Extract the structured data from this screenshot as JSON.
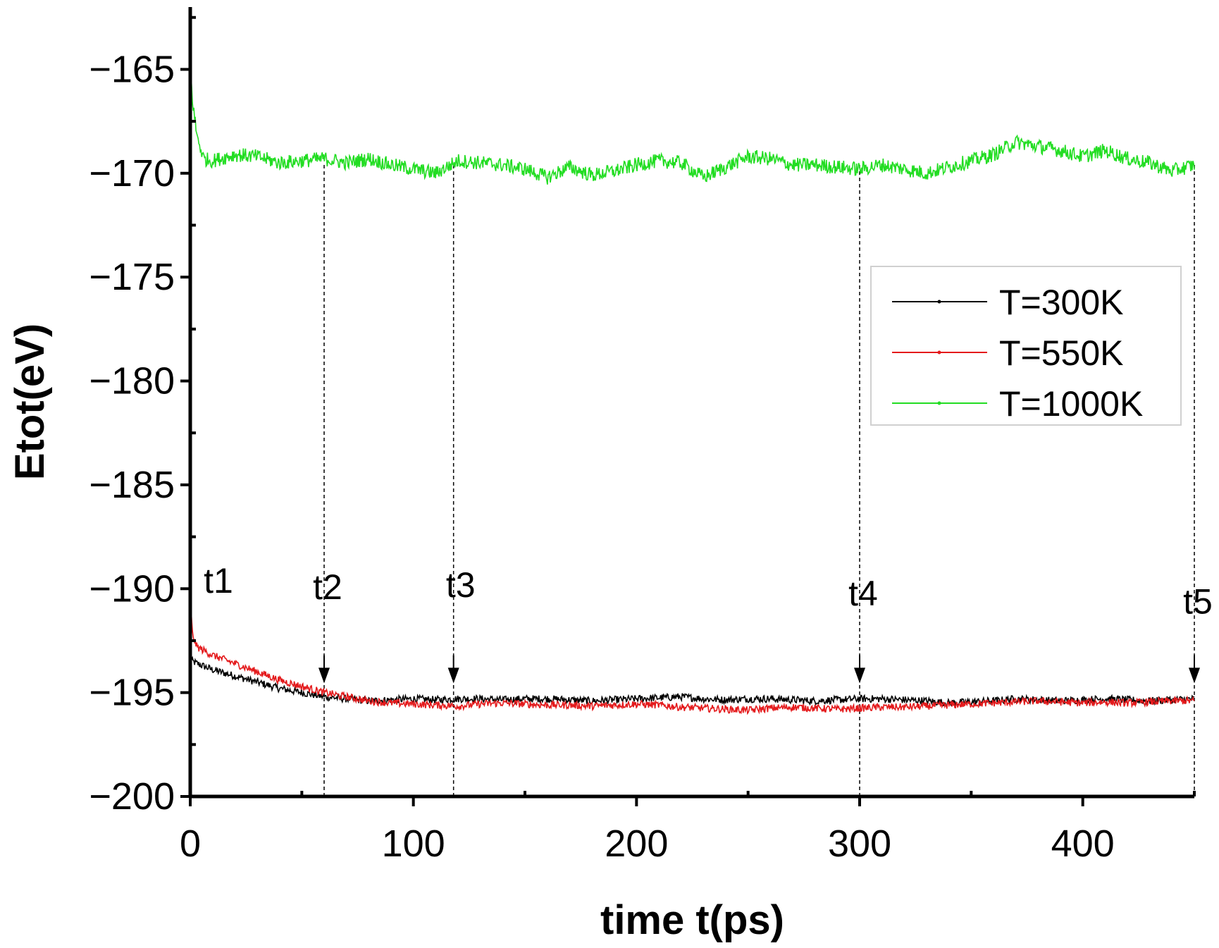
{
  "chart_data": {
    "type": "line",
    "title": "",
    "xlabel": "time t(ps)",
    "ylabel": "Etot(eV)",
    "xlim": [
      0,
      450
    ],
    "ylim": [
      -200,
      -162
    ],
    "xticks": [
      0,
      100,
      200,
      300,
      400
    ],
    "xtick_labels": [
      "0",
      "100",
      "200",
      "300",
      "400"
    ],
    "yticks": [
      -200,
      -195,
      -190,
      -185,
      -180,
      -175,
      -170,
      -165
    ],
    "ytick_labels": [
      "−200",
      "−195",
      "−190",
      "−185",
      "−180",
      "−175",
      "−170",
      "−165"
    ],
    "legend_position": "right",
    "series": [
      {
        "name": "T=300K",
        "color": "#000000",
        "x": [
          0,
          1,
          3,
          10,
          20,
          30,
          40,
          50,
          60,
          70,
          80,
          90,
          100,
          110,
          120,
          130,
          140,
          150,
          160,
          170,
          180,
          190,
          200,
          210,
          220,
          230,
          240,
          250,
          260,
          270,
          280,
          290,
          300,
          310,
          320,
          330,
          340,
          350,
          360,
          370,
          380,
          390,
          400,
          410,
          420,
          430,
          440,
          450
        ],
        "y": [
          -193.4,
          -193.5,
          -193.6,
          -193.9,
          -194.2,
          -194.5,
          -194.8,
          -195.0,
          -195.2,
          -195.3,
          -195.4,
          -195.35,
          -195.3,
          -195.35,
          -195.3,
          -195.3,
          -195.35,
          -195.3,
          -195.3,
          -195.35,
          -195.4,
          -195.35,
          -195.3,
          -195.25,
          -195.2,
          -195.3,
          -195.35,
          -195.3,
          -195.3,
          -195.35,
          -195.4,
          -195.35,
          -195.3,
          -195.3,
          -195.35,
          -195.4,
          -195.5,
          -195.45,
          -195.4,
          -195.3,
          -195.35,
          -195.4,
          -195.35,
          -195.3,
          -195.35,
          -195.4,
          -195.35,
          -195.3
        ]
      },
      {
        "name": "T=550K",
        "color": "#e41a1c",
        "x": [
          0,
          1,
          3,
          10,
          20,
          30,
          40,
          50,
          60,
          70,
          80,
          90,
          100,
          110,
          120,
          130,
          140,
          150,
          160,
          170,
          180,
          190,
          200,
          210,
          220,
          230,
          240,
          250,
          260,
          270,
          280,
          290,
          300,
          310,
          320,
          330,
          340,
          350,
          360,
          370,
          380,
          390,
          400,
          410,
          420,
          430,
          440,
          450
        ],
        "y": [
          -190.5,
          -192.2,
          -192.8,
          -193.2,
          -193.6,
          -194.0,
          -194.4,
          -194.7,
          -195.0,
          -195.2,
          -195.4,
          -195.5,
          -195.55,
          -195.6,
          -195.65,
          -195.55,
          -195.5,
          -195.55,
          -195.6,
          -195.6,
          -195.65,
          -195.6,
          -195.55,
          -195.6,
          -195.7,
          -195.75,
          -195.8,
          -195.85,
          -195.75,
          -195.7,
          -195.75,
          -195.8,
          -195.75,
          -195.7,
          -195.7,
          -195.65,
          -195.6,
          -195.55,
          -195.5,
          -195.45,
          -195.4,
          -195.45,
          -195.5,
          -195.45,
          -195.5,
          -195.45,
          -195.4,
          -195.4
        ]
      },
      {
        "name": "T=1000K",
        "color": "#22dd22",
        "x": [
          0,
          1,
          3,
          6,
          10,
          20,
          30,
          40,
          50,
          60,
          70,
          80,
          90,
          100,
          110,
          120,
          130,
          140,
          150,
          160,
          170,
          180,
          190,
          200,
          210,
          220,
          230,
          240,
          250,
          260,
          270,
          280,
          290,
          300,
          310,
          320,
          330,
          340,
          350,
          360,
          370,
          380,
          390,
          400,
          410,
          420,
          430,
          440,
          450
        ],
        "y": [
          -164.8,
          -166.5,
          -168.2,
          -169.3,
          -169.4,
          -169.1,
          -169.2,
          -169.5,
          -169.4,
          -169.3,
          -169.5,
          -169.3,
          -169.6,
          -169.8,
          -170.0,
          -169.4,
          -169.5,
          -169.6,
          -169.8,
          -170.2,
          -169.7,
          -170.1,
          -169.9,
          -169.6,
          -169.4,
          -169.5,
          -170.2,
          -169.7,
          -169.2,
          -169.3,
          -169.6,
          -169.6,
          -169.7,
          -169.8,
          -169.6,
          -169.8,
          -170.0,
          -169.7,
          -169.4,
          -169.1,
          -168.5,
          -168.7,
          -168.9,
          -169.2,
          -168.9,
          -169.3,
          -169.5,
          -169.9,
          -169.6
        ]
      }
    ],
    "annotations": [
      {
        "label": "t1",
        "x": 0,
        "arrow": false,
        "dashed_line": false
      },
      {
        "label": "t2",
        "x": 60,
        "arrow": true,
        "dashed_line": true
      },
      {
        "label": "t3",
        "x": 118,
        "arrow": true,
        "dashed_line": true
      },
      {
        "label": "t4",
        "x": 300,
        "arrow": true,
        "dashed_line": true
      },
      {
        "label": "t5",
        "x": 450,
        "arrow": true,
        "dashed_line": true
      }
    ]
  }
}
